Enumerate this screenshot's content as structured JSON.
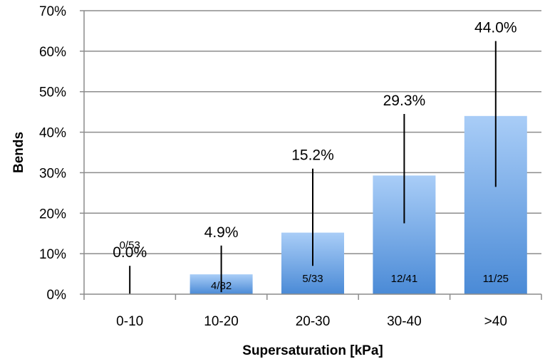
{
  "chart_data": {
    "type": "bar",
    "title": "",
    "xlabel": "Supersaturation [kPa]",
    "ylabel": "Bends",
    "ylim": [
      0,
      70
    ],
    "y_ticks": [
      "0%",
      "10%",
      "20%",
      "30%",
      "40%",
      "50%",
      "60%",
      "70%"
    ],
    "categories": [
      "0-10",
      "10-20",
      "20-30",
      "30-40",
      ">40"
    ],
    "values": [
      0.0,
      4.9,
      15.2,
      29.3,
      44.0
    ],
    "value_labels": [
      "0.0%",
      "4.9%",
      "15.2%",
      "29.3%",
      "44.0%"
    ],
    "count_labels": [
      "0/53",
      "4/82",
      "5/33",
      "12/41",
      "11/25"
    ],
    "error_bars": [
      {
        "low": 0,
        "high": 7
      },
      {
        "low": 0.5,
        "high": 12
      },
      {
        "low": 7,
        "high": 31
      },
      {
        "low": 17.5,
        "high": 44.5
      },
      {
        "low": 26.5,
        "high": 62.5
      }
    ],
    "grid": true,
    "legend": "none",
    "colors": {
      "bar_top": "#a9cdf7",
      "bar_bottom": "#4a8ad6",
      "grid": "#8c8c8c",
      "error_bar": "#000000"
    }
  }
}
